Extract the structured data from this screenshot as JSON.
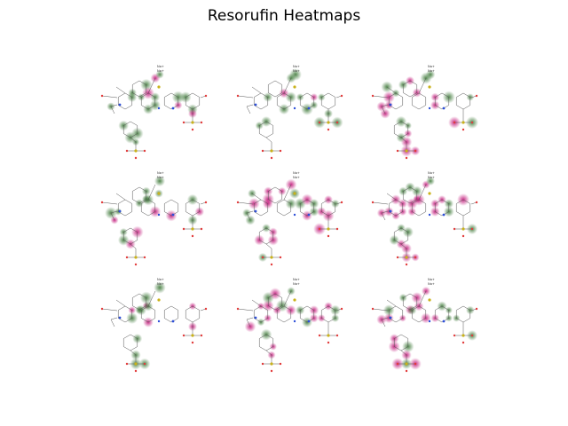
{
  "figure": {
    "title": "Resorufin Heatmaps"
  },
  "molecule_labels": {
    "counterion_1": "Na+",
    "counterion_2": "Na+"
  },
  "colors": {
    "positive": "#3f7a3a",
    "negative": "#c2187a",
    "bond": "#555555",
    "nitrogen": "#2d4fd8",
    "oxygen": "#e23b3b",
    "sulfur": "#c9b21a"
  },
  "panels": [
    {
      "index": 1,
      "neg_intensity": 0.35,
      "pos_intensity": 0.55
    },
    {
      "index": 2,
      "neg_intensity": 0.15,
      "pos_intensity": 0.75
    },
    {
      "index": 3,
      "neg_intensity": 0.65,
      "pos_intensity": 0.45
    },
    {
      "index": 4,
      "neg_intensity": 0.35,
      "pos_intensity": 0.55
    },
    {
      "index": 5,
      "neg_intensity": 0.6,
      "pos_intensity": 0.3
    },
    {
      "index": 6,
      "neg_intensity": 0.85,
      "pos_intensity": 0.35
    },
    {
      "index": 7,
      "neg_intensity": 0.25,
      "pos_intensity": 0.55
    },
    {
      "index": 8,
      "neg_intensity": 0.35,
      "pos_intensity": 0.55
    },
    {
      "index": 9,
      "neg_intensity": 0.7,
      "pos_intensity": 0.3
    }
  ]
}
